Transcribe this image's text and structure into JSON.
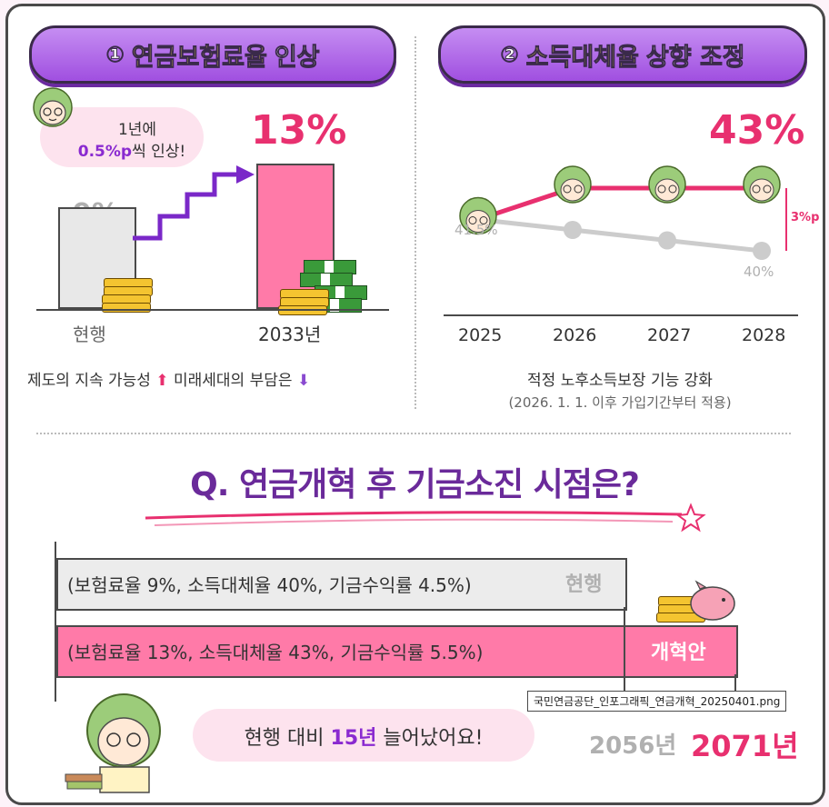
{
  "left_panel": {
    "number": "①",
    "title_highlight": "연금보험료율",
    "title_plain": "인상",
    "bubble_line1": "1년에",
    "bubble_line2_strong": "0.5%p",
    "bubble_line2_rest": "씩 인상!",
    "current_value": "9%",
    "future_value": "13%",
    "current_label": "현행",
    "future_label": "2033년",
    "footer_part1": "제도의 지속 가능성",
    "footer_part2": "미래세대의 부담은",
    "rate_current_pct": 9,
    "rate_future_pct": 13
  },
  "right_panel": {
    "number": "②",
    "title_highlight": "소득대체율",
    "title_plain": "상향 조정",
    "big_value": "43%",
    "start_label": "41.5%",
    "end_label": "40%",
    "delta_label": "3%p",
    "years": [
      "2025",
      "2026",
      "2027",
      "2028"
    ],
    "gray_series": [
      41.5,
      41,
      40.5,
      40
    ],
    "pink_series": [
      41.5,
      43,
      43,
      43
    ],
    "caption": "적정 노후소득보장 기능 강화",
    "subcaption": "(2026. 1. 1. 이후 가입기간부터 적용)"
  },
  "question": {
    "text": "Q. 연금개혁 후 기금소진 시점은?",
    "current_row": "(보험료율 9%, 소득대체율 40%, 기금수익률 4.5%)",
    "current_tag": "현행",
    "reform_row": "(보험료율 13%, 소득대체율 43%, 기금수익률 5.5%)",
    "reform_tag": "개혁안",
    "file_note": "국민연금공단_인포그래픽_연금개혁_20250401.png",
    "year_current": "2056년",
    "year_reform": "2071년",
    "bottom_part1": "현행 대비",
    "bottom_strong": "15년",
    "bottom_part2": "늘어났어요!"
  },
  "colors": {
    "purple": "#a04fe0",
    "pink": "#e8306f",
    "pink_bar": "#ff7aa8",
    "gray": "#b0b0b0",
    "yellow": "#ffe94a"
  }
}
